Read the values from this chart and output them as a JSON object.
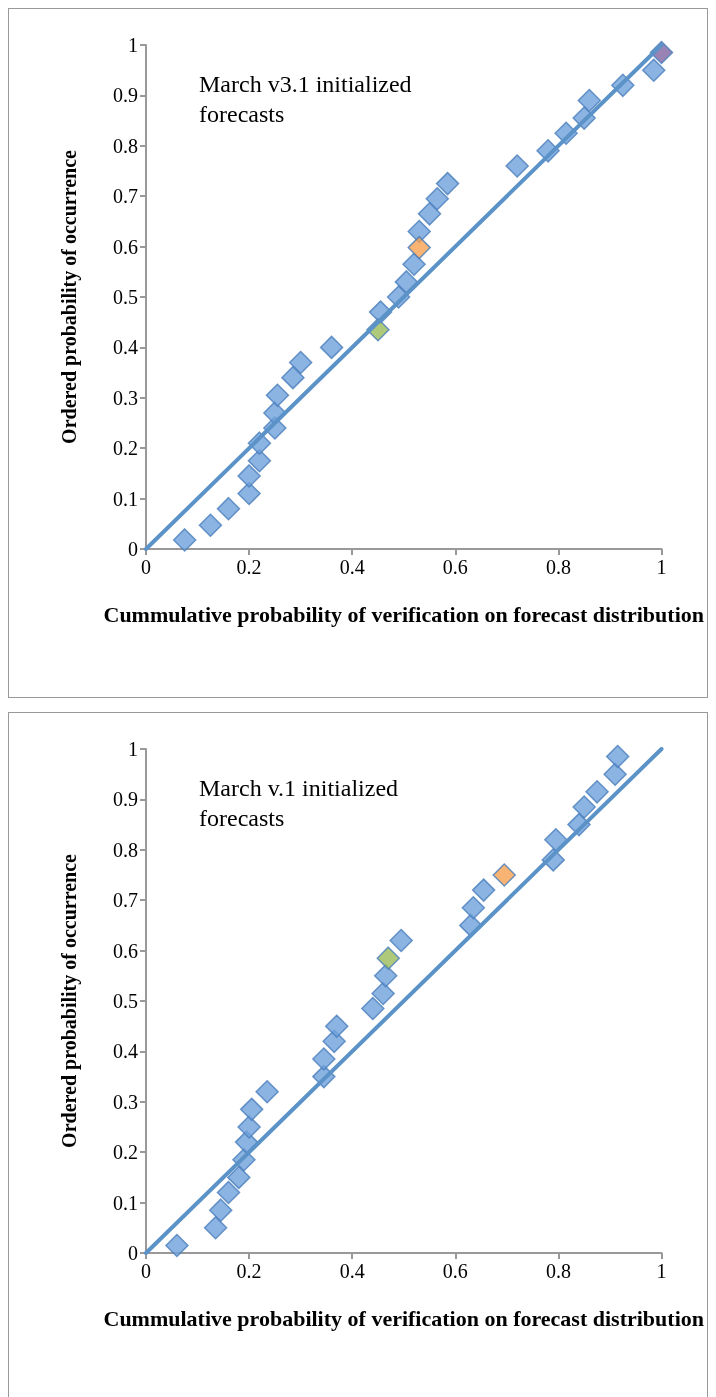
{
  "chart_data": [
    {
      "type": "scatter",
      "xlabel": "Cummulative probability of verification on forecast distribution",
      "ylabel": "Ordered probability of occurrence",
      "annotations": [
        "March v3.1 initialized forecasts"
      ],
      "marker": "diamond",
      "grid": false,
      "xlim": [
        0,
        1
      ],
      "ylim": [
        0,
        1
      ],
      "xticks": [
        0,
        0.2,
        0.4,
        0.6,
        0.8,
        1
      ],
      "yticks": [
        0,
        0.1,
        0.2,
        0.3,
        0.4,
        0.5,
        0.6,
        0.7,
        0.8,
        0.9,
        1
      ],
      "series": [
        {
          "type": "line",
          "marker": "none",
          "line_style": "solid",
          "color": "#5b93c8",
          "x": [
            0,
            1
          ],
          "values": [
            0,
            1
          ]
        },
        {
          "color": "#6fa1dc",
          "x": [
            0.075,
            0.125,
            0.16,
            0.2,
            0.2,
            0.22,
            0.22,
            0.25,
            0.25,
            0.255,
            0.285,
            0.3,
            0.36,
            0.455,
            0.49,
            0.505,
            0.52,
            0.53,
            0.55,
            0.565,
            0.585,
            0.72,
            0.78,
            0.815,
            0.85,
            0.86,
            0.925,
            0.985
          ],
          "values": [
            0.018,
            0.047,
            0.08,
            0.11,
            0.145,
            0.175,
            0.21,
            0.24,
            0.27,
            0.305,
            0.34,
            0.37,
            0.4,
            0.47,
            0.5,
            0.53,
            0.565,
            0.63,
            0.665,
            0.695,
            0.725,
            0.76,
            0.79,
            0.825,
            0.855,
            0.89,
            0.92,
            0.95
          ]
        },
        {
          "color": "#9bbb59",
          "x": [
            0.45
          ],
          "values": [
            0.435
          ]
        },
        {
          "color": "#f7a04f",
          "x": [
            0.53
          ],
          "values": [
            0.598
          ]
        },
        {
          "color": "#8064a2",
          "x": [
            1
          ],
          "values": [
            0.985
          ]
        }
      ]
    },
    {
      "type": "scatter",
      "xlabel": "Cummulative probability of verification on forecast distribution",
      "ylabel": "Ordered probability of occurrence",
      "annotations": [
        "March v.1 initialized forecasts"
      ],
      "marker": "diamond",
      "grid": false,
      "xlim": [
        0,
        1
      ],
      "ylim": [
        0,
        1
      ],
      "xticks": [
        0,
        0.2,
        0.4,
        0.6,
        0.8,
        1
      ],
      "yticks": [
        0,
        0.1,
        0.2,
        0.3,
        0.4,
        0.5,
        0.6,
        0.7,
        0.8,
        0.9,
        1
      ],
      "series": [
        {
          "type": "line",
          "marker": "none",
          "line_style": "solid",
          "color": "#5b93c8",
          "x": [
            0,
            1
          ],
          "values": [
            0,
            1
          ]
        },
        {
          "color": "#6fa1dc",
          "x": [
            0.06,
            0.135,
            0.145,
            0.16,
            0.18,
            0.19,
            0.195,
            0.2,
            0.205,
            0.235,
            0.345,
            0.345,
            0.365,
            0.37,
            0.44,
            0.46,
            0.465,
            0.495,
            0.63,
            0.635,
            0.655,
            0.79,
            0.795,
            0.84,
            0.85,
            0.875,
            0.91,
            0.915
          ],
          "values": [
            0.015,
            0.05,
            0.085,
            0.12,
            0.15,
            0.185,
            0.22,
            0.25,
            0.285,
            0.32,
            0.35,
            0.385,
            0.42,
            0.45,
            0.485,
            0.515,
            0.55,
            0.62,
            0.65,
            0.685,
            0.72,
            0.78,
            0.82,
            0.85,
            0.885,
            0.915,
            0.95,
            0.985
          ]
        },
        {
          "color": "#9bbb59",
          "x": [
            0.47
          ],
          "values": [
            0.585
          ]
        },
        {
          "color": "#f7a04f",
          "x": [
            0.695
          ],
          "values": [
            0.75
          ]
        }
      ]
    }
  ]
}
